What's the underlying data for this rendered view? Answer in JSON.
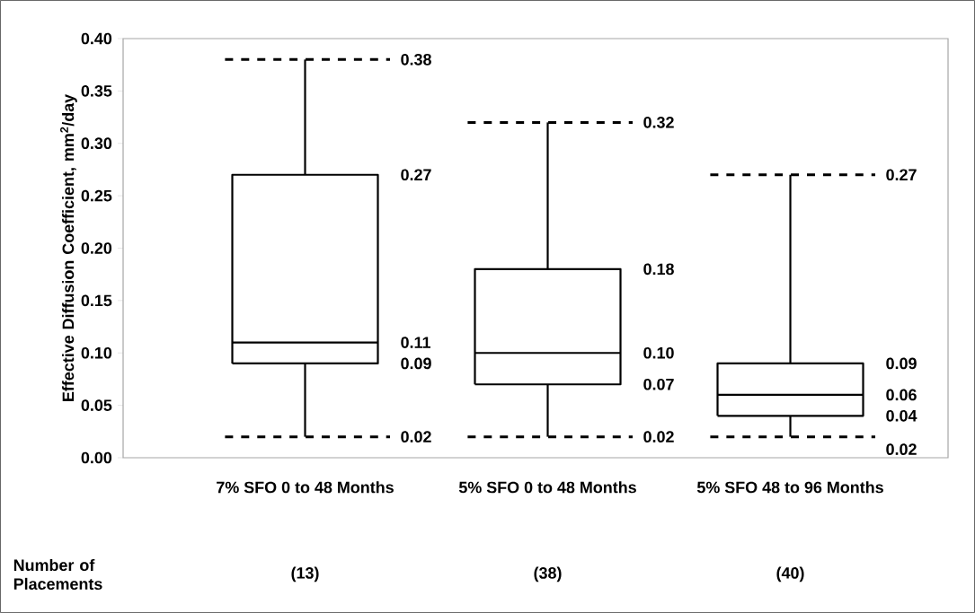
{
  "chart_data": {
    "type": "box",
    "ylabel": "Effective Diffusion Coefficient, mm$^{2}$/day",
    "categories": [
      "7% SFO 0 to 48 Months",
      "5% SFO 0 to 48 Months",
      "5% SFO 48 to 96 Months"
    ],
    "boxes": [
      {
        "low": 0.02,
        "q1": 0.09,
        "median": 0.11,
        "q3": 0.27,
        "high": 0.38
      },
      {
        "low": 0.02,
        "q1": 0.07,
        "median": 0.1,
        "q3": 0.18,
        "high": 0.32
      },
      {
        "low": 0.02,
        "q1": 0.04,
        "median": 0.06,
        "q3": 0.09,
        "high": 0.27
      }
    ],
    "ylim": [
      0,
      0.4
    ],
    "yticks": [
      {
        "value": 0,
        "label": "0.00"
      },
      {
        "value": 0.05,
        "label": "0.05"
      },
      {
        "value": 0.1,
        "label": "0.10"
      },
      {
        "value": 0.15,
        "label": "0.15"
      },
      {
        "value": 0.2,
        "label": "0.20"
      },
      {
        "value": 0.25,
        "label": "0.25"
      },
      {
        "value": 0.3,
        "label": "0.30"
      },
      {
        "value": 0.35,
        "label": "0.35"
      },
      {
        "value": 0.4,
        "label": "0.40"
      }
    ],
    "annotations": [
      "Number of Placements",
      "(13)",
      "(38)",
      "(40)",
      "0.38",
      "0.27",
      "0.11",
      "0.09",
      "0.02",
      "0.32",
      "0.18",
      "0.10",
      "0.07",
      "0.02",
      "0.27",
      "0.09",
      "0.06",
      "0.04",
      "0.02"
    ]
  }
}
